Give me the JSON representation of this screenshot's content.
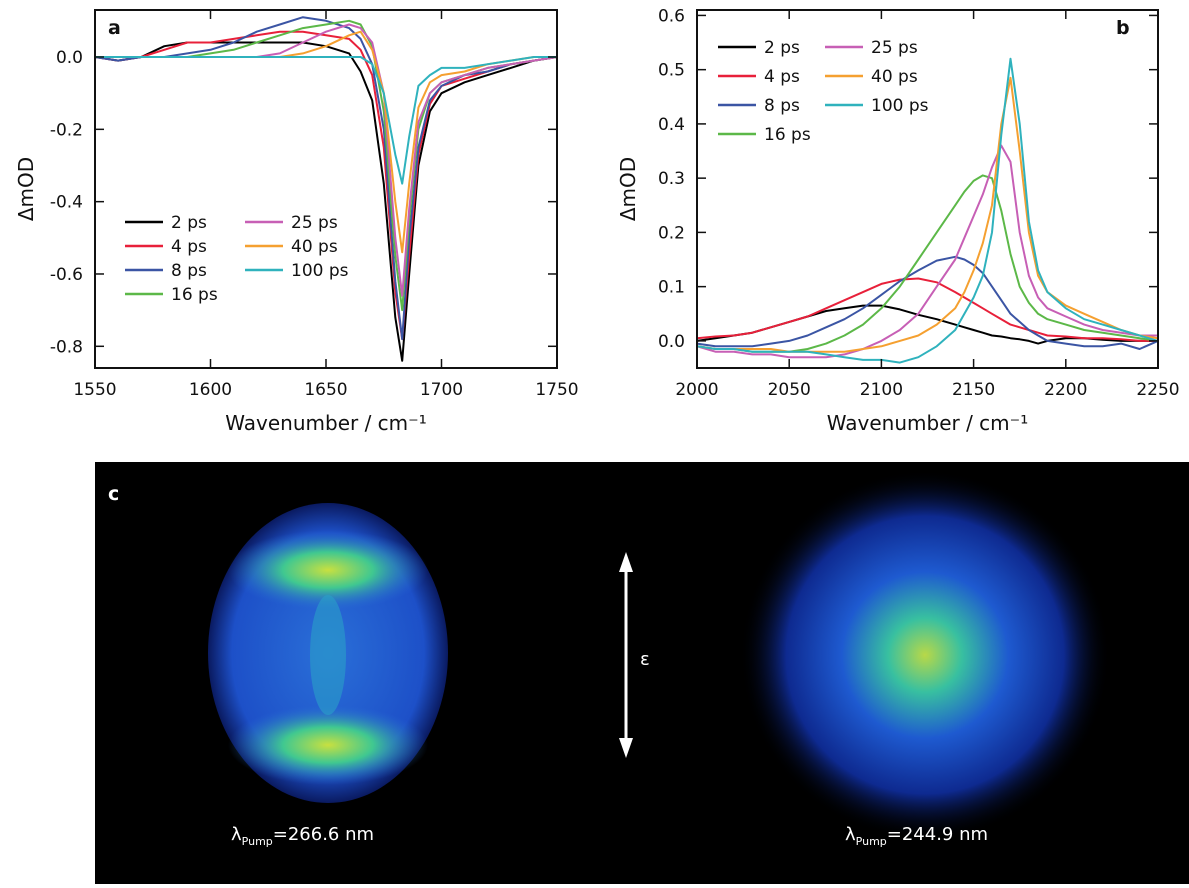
{
  "chart_data": [
    {
      "type": "line",
      "panel_label": "a",
      "xlabel": "Wavenumber / cm⁻¹",
      "ylabel": "ΔmOD",
      "xlim": [
        1550,
        1750
      ],
      "xticks": [
        1550,
        1600,
        1650,
        1700,
        1750
      ],
      "ylim": [
        -0.86,
        0.13
      ],
      "yticks": [
        {
          "value": 0,
          "label": "0.0"
        },
        -0.2,
        -0.4,
        -0.6,
        -0.8
      ],
      "x": [
        1550,
        1560,
        1570,
        1580,
        1590,
        1600,
        1610,
        1620,
        1630,
        1640,
        1650,
        1660,
        1665,
        1670,
        1675,
        1680,
        1683,
        1686,
        1690,
        1695,
        1700,
        1710,
        1720,
        1730,
        1740,
        1750
      ],
      "series": [
        {
          "name": "2 ps",
          "color": "#000000",
          "values": [
            0,
            -0.01,
            0,
            0.03,
            0.04,
            0.04,
            0.04,
            0.04,
            0.04,
            0.04,
            0.03,
            0.01,
            -0.04,
            -0.12,
            -0.35,
            -0.72,
            -0.84,
            -0.6,
            -0.3,
            -0.15,
            -0.1,
            -0.07,
            -0.05,
            -0.03,
            -0.01,
            0
          ]
        },
        {
          "name": "4 ps",
          "color": "#e8203a",
          "values": [
            0,
            -0.01,
            0,
            0.02,
            0.04,
            0.04,
            0.05,
            0.06,
            0.07,
            0.07,
            0.06,
            0.05,
            0.02,
            -0.05,
            -0.25,
            -0.65,
            -0.78,
            -0.55,
            -0.27,
            -0.13,
            -0.08,
            -0.06,
            -0.04,
            -0.02,
            -0.01,
            0
          ]
        },
        {
          "name": "8 ps",
          "color": "#3b55a4",
          "values": [
            0,
            -0.01,
            0,
            0,
            0.01,
            0.02,
            0.04,
            0.07,
            0.09,
            0.11,
            0.1,
            0.08,
            0.05,
            -0.02,
            -0.2,
            -0.62,
            -0.78,
            -0.5,
            -0.25,
            -0.12,
            -0.08,
            -0.05,
            -0.04,
            -0.02,
            -0.01,
            0
          ]
        },
        {
          "name": "16 ps",
          "color": "#5cb848",
          "values": [
            0,
            0,
            0,
            0,
            0,
            0.01,
            0.02,
            0.04,
            0.06,
            0.08,
            0.09,
            0.1,
            0.09,
            0.03,
            -0.15,
            -0.55,
            -0.7,
            -0.45,
            -0.2,
            -0.1,
            -0.07,
            -0.05,
            -0.03,
            -0.02,
            -0.01,
            0
          ]
        },
        {
          "name": "25 ps",
          "color": "#c75fb5",
          "values": [
            0,
            0,
            0,
            0,
            0,
            0,
            0,
            0,
            0.01,
            0.04,
            0.07,
            0.09,
            0.08,
            0.04,
            -0.1,
            -0.5,
            -0.66,
            -0.42,
            -0.18,
            -0.1,
            -0.07,
            -0.05,
            -0.03,
            -0.02,
            -0.01,
            0
          ]
        },
        {
          "name": "40 ps",
          "color": "#f5a030",
          "values": [
            0,
            0,
            0,
            0,
            0,
            0,
            0,
            0,
            0,
            0.01,
            0.03,
            0.06,
            0.07,
            0.02,
            -0.1,
            -0.4,
            -0.54,
            -0.35,
            -0.14,
            -0.07,
            -0.05,
            -0.04,
            -0.02,
            -0.01,
            0,
            0
          ]
        },
        {
          "name": "100 ps",
          "color": "#2fb2bd",
          "values": [
            0,
            0,
            0,
            0,
            0,
            0,
            0,
            0,
            0,
            0,
            0,
            0,
            0,
            -0.02,
            -0.1,
            -0.27,
            -0.35,
            -0.22,
            -0.08,
            -0.05,
            -0.03,
            -0.03,
            -0.02,
            -0.01,
            0,
            0
          ]
        }
      ]
    },
    {
      "type": "line",
      "panel_label": "b",
      "xlabel": "Wavenumber / cm⁻¹",
      "ylabel": "ΔmOD",
      "xlim": [
        2000,
        2250
      ],
      "xticks": [
        2000,
        2050,
        2100,
        2150,
        2200,
        2250
      ],
      "ylim": [
        -0.05,
        0.61
      ],
      "yticks": [
        {
          "value": 0,
          "label": "0.0"
        },
        0.1,
        0.2,
        0.3,
        0.4,
        0.5,
        0.6
      ],
      "x": [
        2000,
        2010,
        2020,
        2030,
        2040,
        2050,
        2060,
        2070,
        2080,
        2090,
        2100,
        2110,
        2120,
        2130,
        2140,
        2145,
        2150,
        2155,
        2160,
        2165,
        2170,
        2175,
        2180,
        2185,
        2190,
        2200,
        2210,
        2220,
        2230,
        2240,
        2250
      ],
      "series": [
        {
          "name": "2 ps",
          "color": "#000000",
          "values": [
            0,
            0.005,
            0.01,
            0.015,
            0.025,
            0.035,
            0.045,
            0.055,
            0.06,
            0.065,
            0.065,
            0.058,
            0.048,
            0.04,
            0.03,
            0.025,
            0.02,
            0.015,
            0.01,
            0.008,
            0.005,
            0.003,
            0,
            -0.005,
            0,
            0.005,
            0.005,
            0.002,
            0,
            0,
            0
          ]
        },
        {
          "name": "4 ps",
          "color": "#e8203a",
          "values": [
            0.005,
            0.008,
            0.01,
            0.015,
            0.025,
            0.035,
            0.045,
            0.06,
            0.075,
            0.09,
            0.105,
            0.113,
            0.115,
            0.108,
            0.09,
            0.08,
            0.07,
            0.06,
            0.05,
            0.04,
            0.03,
            0.025,
            0.02,
            0.015,
            0.01,
            0.008,
            0.005,
            0.005,
            0.003,
            0,
            0
          ]
        },
        {
          "name": "8 ps",
          "color": "#3b55a4",
          "values": [
            -0.005,
            -0.01,
            -0.01,
            -0.01,
            -0.005,
            0,
            0.01,
            0.025,
            0.04,
            0.06,
            0.085,
            0.11,
            0.13,
            0.148,
            0.155,
            0.15,
            0.14,
            0.125,
            0.1,
            0.075,
            0.05,
            0.035,
            0.02,
            0.01,
            0,
            -0.005,
            -0.01,
            -0.01,
            -0.005,
            -0.015,
            0
          ]
        },
        {
          "name": "16 ps",
          "color": "#5cb848",
          "values": [
            -0.01,
            -0.015,
            -0.015,
            -0.02,
            -0.02,
            -0.02,
            -0.015,
            -0.005,
            0.01,
            0.03,
            0.06,
            0.1,
            0.15,
            0.2,
            0.25,
            0.275,
            0.295,
            0.305,
            0.3,
            0.24,
            0.16,
            0.1,
            0.07,
            0.05,
            0.04,
            0.03,
            0.02,
            0.015,
            0.01,
            0.005,
            0
          ]
        },
        {
          "name": "25 ps",
          "color": "#c75fb5",
          "values": [
            -0.01,
            -0.02,
            -0.02,
            -0.025,
            -0.025,
            -0.03,
            -0.03,
            -0.03,
            -0.025,
            -0.015,
            0,
            0.02,
            0.05,
            0.1,
            0.15,
            0.19,
            0.23,
            0.27,
            0.32,
            0.36,
            0.33,
            0.2,
            0.12,
            0.08,
            0.06,
            0.045,
            0.03,
            0.02,
            0.015,
            0.01,
            0.01
          ]
        },
        {
          "name": "40 ps",
          "color": "#f5a030",
          "values": [
            -0.01,
            -0.015,
            -0.015,
            -0.015,
            -0.015,
            -0.02,
            -0.02,
            -0.02,
            -0.02,
            -0.015,
            -0.01,
            0,
            0.01,
            0.03,
            0.06,
            0.09,
            0.13,
            0.18,
            0.25,
            0.4,
            0.485,
            0.35,
            0.2,
            0.12,
            0.09,
            0.065,
            0.05,
            0.035,
            0.02,
            0.01,
            0.005
          ]
        },
        {
          "name": "100 ps",
          "color": "#2fb2bd",
          "values": [
            -0.01,
            -0.015,
            -0.015,
            -0.02,
            -0.02,
            -0.02,
            -0.02,
            -0.025,
            -0.03,
            -0.035,
            -0.035,
            -0.04,
            -0.03,
            -0.01,
            0.02,
            0.05,
            0.08,
            0.12,
            0.2,
            0.38,
            0.52,
            0.4,
            0.22,
            0.13,
            0.09,
            0.06,
            0.04,
            0.03,
            0.02,
            0.01,
            0
          ]
        }
      ]
    }
  ],
  "image_panel": {
    "label": "c",
    "polarization": "ε",
    "captions": [
      {
        "symbol": "λ",
        "subscript": "Pump",
        "text": "=266.6 nm"
      },
      {
        "symbol": "λ",
        "subscript": "Pump",
        "text": "=244.9 nm"
      }
    ]
  }
}
